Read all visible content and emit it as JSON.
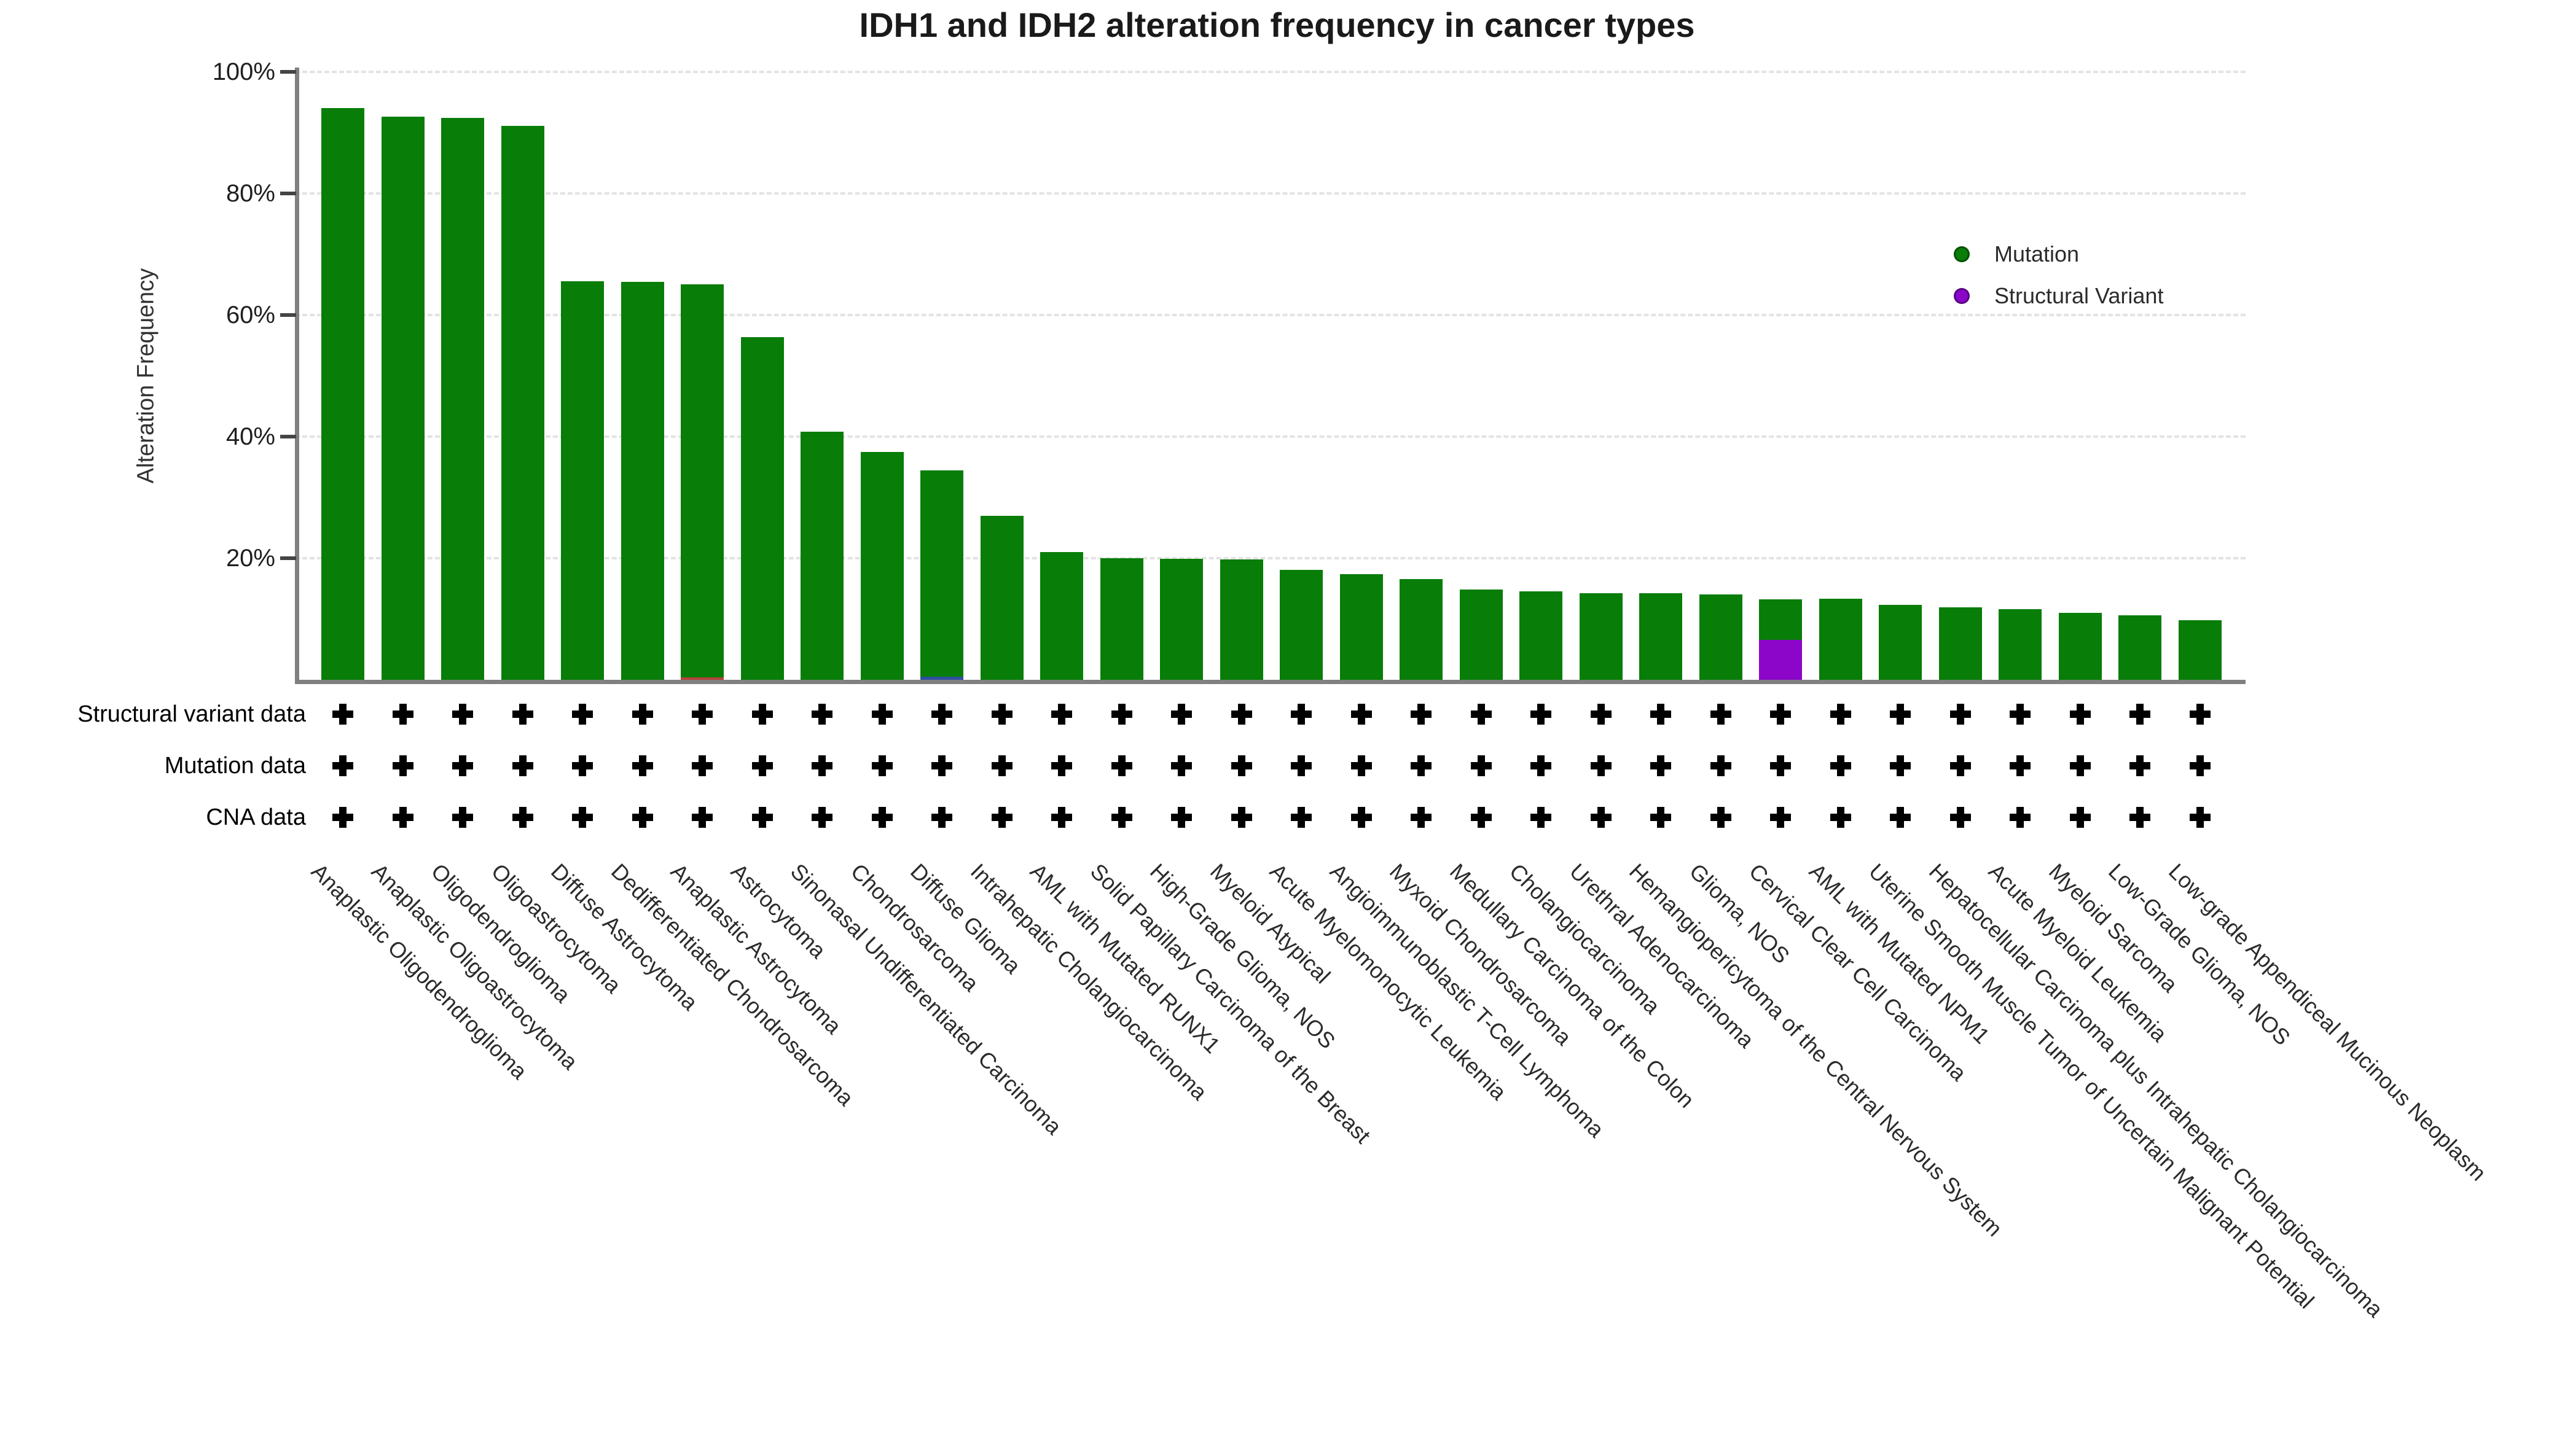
{
  "title": "IDH1 and IDH2 alteration frequency in cancer types",
  "y_axis": {
    "label": "Alteration Frequency",
    "tick_labels": [
      "100%",
      "80%",
      "60%",
      "40%",
      "20%"
    ],
    "tick_values": [
      100,
      80,
      60,
      40,
      20
    ]
  },
  "legend": {
    "items": [
      {
        "label": "Mutation",
        "color": "#087d08"
      },
      {
        "label": "Structural Variant",
        "color": "#8b06c9"
      }
    ]
  },
  "data_availability_rows": {
    "row_labels": [
      "Structural variant data",
      "Mutation data",
      "CNA data"
    ],
    "mark": "+",
    "columns": 32
  },
  "chart_data": {
    "type": "bar",
    "stacked": true,
    "title": "IDH1 and IDH2 alteration frequency in cancer types",
    "xlabel": "",
    "ylabel": "Alteration Frequency",
    "ylim": [
      0,
      100
    ],
    "grid": "horizontal dashed lines at 20/40/60/80/100%",
    "legend_position": "upper right",
    "categories": [
      "Anaplastic Oligodendroglioma",
      "Anaplastic Oligoastrocytoma",
      "Oligodendroglioma",
      "Oligoastrocytoma",
      "Diffuse Astrocytoma",
      "Dedifferentiated Chondrosarcoma",
      "Anaplastic Astrocytoma",
      "Astrocytoma",
      "Sinonasal Undifferentiated Carcinoma",
      "Chondrosarcoma",
      "Diffuse Glioma",
      "Intrahepatic Cholangiocarcinoma",
      "AML with Mutated RUNX1",
      "Solid Papillary Carcinoma of the Breast",
      "High-Grade Glioma, NOS",
      "Myeloid Atypical",
      "Acute Myelomonocytic Leukemia",
      "Angioimmunoblastic T-Cell Lymphoma",
      "Myxoid Chondrosarcoma",
      "Medullary Carcinoma of the Colon",
      "Cholangiocarcinoma",
      "Urethral Adenocarcinoma",
      "Hemangiopericytoma of the Central Nervous System",
      "Glioma, NOS",
      "Cervical Clear Cell Carcinoma",
      "AML with Mutated NPM1",
      "Uterine Smooth Muscle Tumor of Uncertain Malignant Potential",
      "Hepatocellular Carcinoma plus Intrahepatic Cholangiocarcinoma",
      "Acute Myeloid Leukemia",
      "Myeloid Sarcoma",
      "Low-Grade Glioma, NOS",
      "Low-grade Appendiceal Mucinous Neoplasm"
    ],
    "series": [
      {
        "name": "Mutation",
        "color": "#087d08",
        "values": [
          94.0,
          92.6,
          92.4,
          91.1,
          65.6,
          65.5,
          64.6,
          56.4,
          40.8,
          37.5,
          33.9,
          27.0,
          21.0,
          20.0,
          19.9,
          19.8,
          18.1,
          17.4,
          16.6,
          14.8,
          14.5,
          14.2,
          14.2,
          14.0,
          6.7,
          13.3,
          12.3,
          11.9,
          11.6,
          11.0,
          10.6,
          9.8
        ]
      },
      {
        "name": "Structural Variant",
        "color": "#8b06c9",
        "values": [
          0,
          0,
          0,
          0,
          0,
          0,
          0,
          0,
          0,
          0,
          0,
          0,
          0,
          0,
          0,
          0,
          0,
          0,
          0,
          0,
          0,
          0,
          0,
          0,
          6.6,
          0,
          0,
          0,
          0,
          0,
          0,
          0
        ]
      },
      {
        "name": "unlabeled-red-segment",
        "color": "#b5443c",
        "values": [
          0,
          0,
          0,
          0,
          0,
          0,
          0.4,
          0,
          0,
          0,
          0,
          0,
          0,
          0,
          0,
          0,
          0,
          0,
          0,
          0,
          0,
          0,
          0,
          0,
          0,
          0,
          0,
          0,
          0,
          0,
          0,
          0
        ]
      },
      {
        "name": "unlabeled-blue-segment",
        "color": "#2e4fa0",
        "values": [
          0,
          0,
          0,
          0,
          0,
          0,
          0,
          0,
          0,
          0,
          0.5,
          0,
          0,
          0,
          0,
          0,
          0,
          0,
          0,
          0,
          0,
          0,
          0,
          0,
          0,
          0,
          0,
          0,
          0,
          0,
          0,
          0
        ]
      }
    ],
    "totals": [
      94.0,
      92.6,
      92.4,
      91.1,
      65.6,
      65.5,
      65.0,
      56.4,
      40.8,
      37.5,
      34.4,
      27.0,
      21.0,
      20.0,
      19.9,
      19.8,
      18.1,
      17.4,
      16.6,
      14.8,
      14.5,
      14.2,
      14.2,
      14.0,
      13.3,
      13.3,
      12.3,
      11.9,
      11.6,
      11.0,
      10.6,
      9.8
    ]
  }
}
